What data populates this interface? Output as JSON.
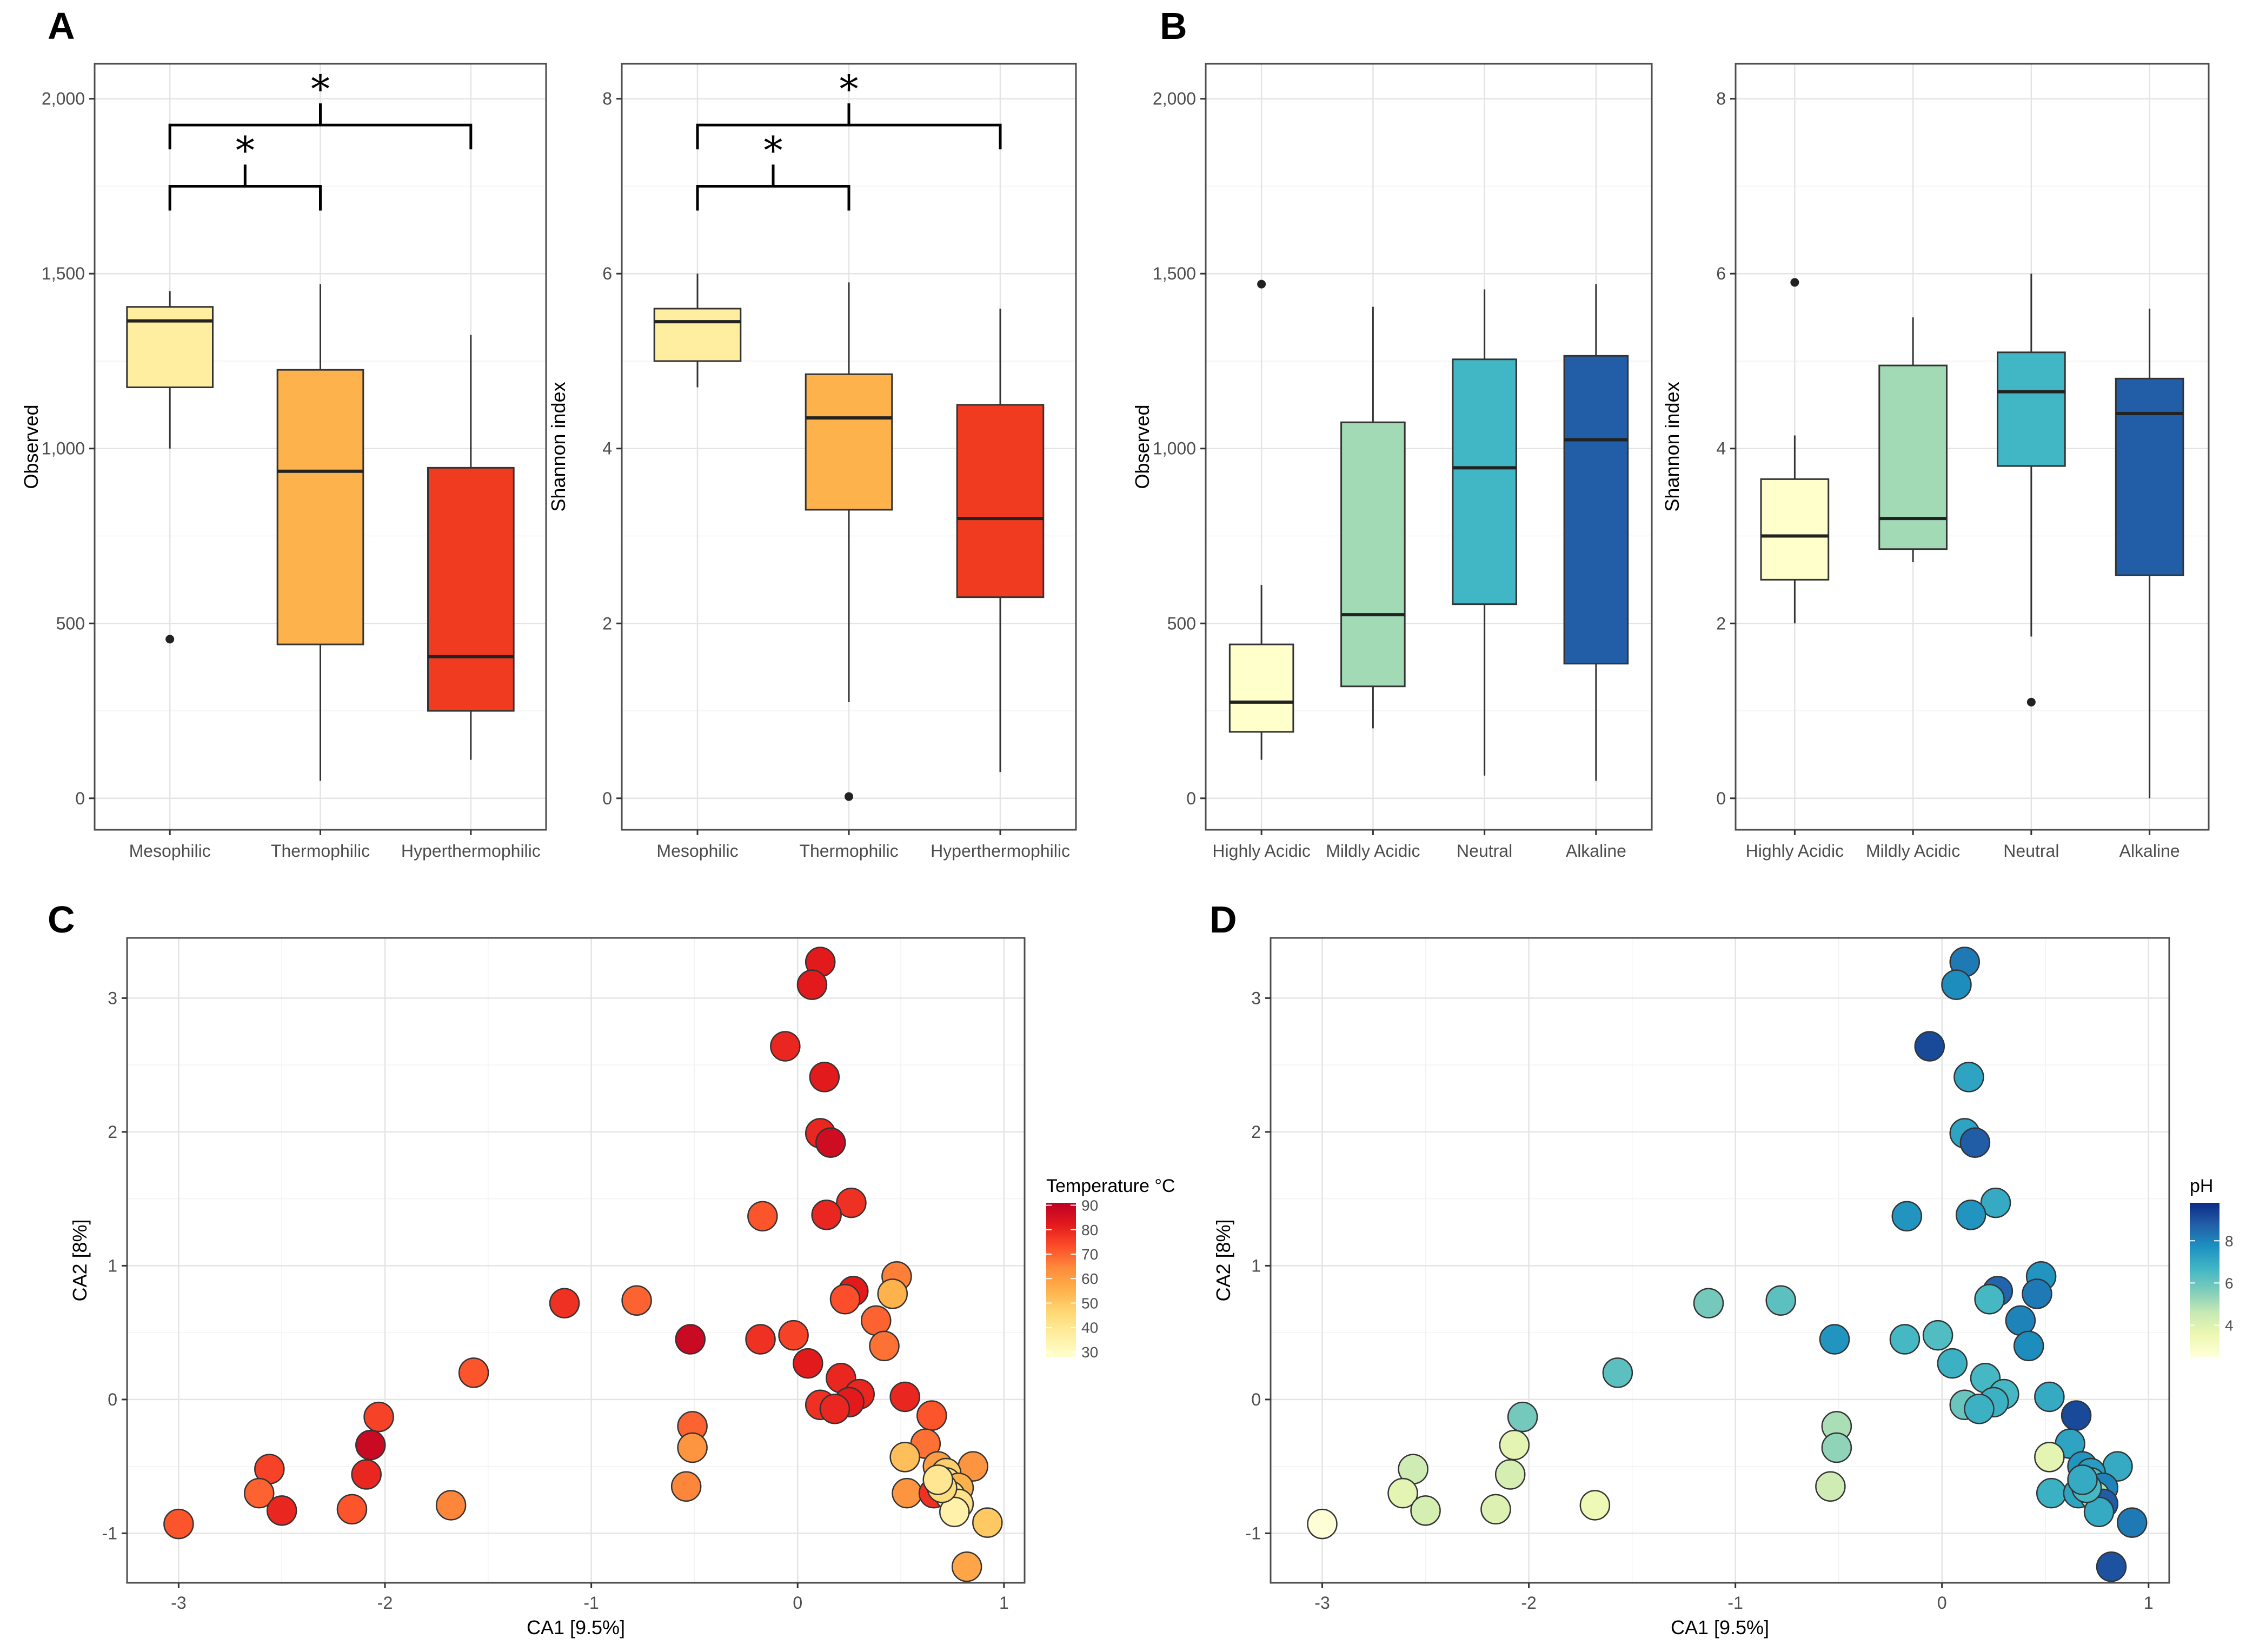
{
  "panel_labels": [
    "A",
    "B",
    "C",
    "D"
  ],
  "chart_data": [
    {
      "type": "box",
      "id": "A1",
      "panel": "A",
      "ylabel": "Observed",
      "ylim": [
        -90,
        2100
      ],
      "yticks": [
        0,
        500,
        1000,
        1500,
        2000
      ],
      "ytick_labels": [
        "0",
        "500",
        "1,000",
        "1,500",
        "2,000"
      ],
      "categories": [
        "Mesophilic",
        "Thermophilic",
        "Hyperthermophilic"
      ],
      "boxes": [
        {
          "color": "#FFEDA0",
          "lower_whisker": 1000,
          "q1": 1175,
          "median": 1365,
          "q3": 1405,
          "upper_whisker": 1450,
          "outliers": [
            455
          ]
        },
        {
          "color": "#FEB24C",
          "lower_whisker": 50,
          "q1": 440,
          "median": 935,
          "q3": 1225,
          "upper_whisker": 1470,
          "outliers": []
        },
        {
          "color": "#F03B20",
          "lower_whisker": 110,
          "q1": 250,
          "median": 405,
          "q3": 945,
          "upper_whisker": 1325,
          "outliers": []
        }
      ],
      "significance": [
        {
          "from": 0,
          "to": 1,
          "label": "*",
          "y": 1750
        },
        {
          "from": 0,
          "to": 2,
          "label": "*",
          "y": 1925
        }
      ]
    },
    {
      "type": "box",
      "id": "A2",
      "panel": "A",
      "ylabel": "Shannon index",
      "ylim": [
        -0.36,
        8.4
      ],
      "yticks": [
        0,
        2,
        4,
        6,
        8
      ],
      "ytick_labels": [
        "0",
        "2",
        "4",
        "6",
        "8"
      ],
      "categories": [
        "Mesophilic",
        "Thermophilic",
        "Hyperthermophilic"
      ],
      "boxes": [
        {
          "color": "#FFEDA0",
          "lower_whisker": 4.7,
          "q1": 5.0,
          "median": 5.45,
          "q3": 5.6,
          "upper_whisker": 6.0,
          "outliers": []
        },
        {
          "color": "#FEB24C",
          "lower_whisker": 1.1,
          "q1": 3.3,
          "median": 4.35,
          "q3": 4.85,
          "upper_whisker": 5.9,
          "outliers": [
            0.02
          ]
        },
        {
          "color": "#F03B20",
          "lower_whisker": 0.3,
          "q1": 2.3,
          "median": 3.2,
          "q3": 4.5,
          "upper_whisker": 5.6,
          "outliers": []
        }
      ],
      "significance": [
        {
          "from": 0,
          "to": 1,
          "label": "*",
          "y": 7.0
        },
        {
          "from": 0,
          "to": 2,
          "label": "*",
          "y": 7.7
        }
      ]
    },
    {
      "type": "box",
      "id": "B1",
      "panel": "B",
      "ylabel": "Observed",
      "ylim": [
        -90,
        2100
      ],
      "yticks": [
        0,
        500,
        1000,
        1500,
        2000
      ],
      "ytick_labels": [
        "0",
        "500",
        "1,000",
        "1,500",
        "2,000"
      ],
      "categories": [
        "Highly Acidic",
        "Mildly Acidic",
        "Neutral",
        "Alkaline"
      ],
      "boxes": [
        {
          "color": "#FFFFCC",
          "lower_whisker": 110,
          "q1": 190,
          "median": 275,
          "q3": 440,
          "upper_whisker": 610,
          "outliers": [
            1470
          ]
        },
        {
          "color": "#A1DAB4",
          "lower_whisker": 200,
          "q1": 320,
          "median": 525,
          "q3": 1075,
          "upper_whisker": 1405,
          "outliers": []
        },
        {
          "color": "#41B6C4",
          "lower_whisker": 65,
          "q1": 555,
          "median": 945,
          "q3": 1255,
          "upper_whisker": 1455,
          "outliers": []
        },
        {
          "color": "#225EA8",
          "lower_whisker": 50,
          "q1": 385,
          "median": 1025,
          "q3": 1265,
          "upper_whisker": 1470,
          "outliers": []
        }
      ],
      "significance": []
    },
    {
      "type": "box",
      "id": "B2",
      "panel": "B",
      "ylabel": "Shannon index",
      "ylim": [
        -0.36,
        8.4
      ],
      "yticks": [
        0,
        2,
        4,
        6,
        8
      ],
      "ytick_labels": [
        "0",
        "2",
        "4",
        "6",
        "8"
      ],
      "categories": [
        "Highly Acidic",
        "Mildly Acidic",
        "Neutral",
        "Alkaline"
      ],
      "boxes": [
        {
          "color": "#FFFFCC",
          "lower_whisker": 2.0,
          "q1": 2.5,
          "median": 3.0,
          "q3": 3.65,
          "upper_whisker": 4.15,
          "outliers": [
            5.9
          ]
        },
        {
          "color": "#A1DAB4",
          "lower_whisker": 2.7,
          "q1": 2.85,
          "median": 3.2,
          "q3": 4.95,
          "upper_whisker": 5.5,
          "outliers": []
        },
        {
          "color": "#41B6C4",
          "lower_whisker": 1.85,
          "q1": 3.8,
          "median": 4.65,
          "q3": 5.1,
          "upper_whisker": 6.0,
          "outliers": [
            1.1
          ]
        },
        {
          "color": "#225EA8",
          "lower_whisker": 0.0,
          "q1": 2.55,
          "median": 4.4,
          "q3": 4.8,
          "upper_whisker": 5.6,
          "outliers": []
        }
      ],
      "significance": []
    },
    {
      "type": "scatter",
      "id": "C",
      "panel": "C",
      "xlabel": "CA1   [9.5%]",
      "ylabel": "CA2   [8%]",
      "xlim": [
        -3.25,
        1.1
      ],
      "ylim": [
        -1.37,
        3.45
      ],
      "xticks": [
        -3,
        -2,
        -1,
        0,
        1
      ],
      "yticks": [
        -1,
        0,
        1,
        2,
        3
      ],
      "xtick_labels": [
        "-3",
        "-2",
        "-1",
        "0",
        "1"
      ],
      "ytick_labels": [
        "-1",
        "0",
        "1",
        "2",
        "3"
      ],
      "color_scale": [
        "#FFFFCC",
        "#FFEDA0",
        "#FED976",
        "#FEB24C",
        "#FD8D3C",
        "#FC4E2A",
        "#E31A1C",
        "#BD0026"
      ],
      "color_range": [
        28,
        91
      ],
      "legend": {
        "title": "Temperature °C",
        "ticks": [
          30,
          40,
          50,
          60,
          70,
          80,
          90
        ],
        "tick_labels": [
          "30",
          "40",
          "50",
          "60",
          "70",
          "80",
          "90"
        ]
      },
      "points": [
        {
          "x": 0.11,
          "y": 3.27,
          "c": 82
        },
        {
          "x": 0.07,
          "y": 3.1,
          "c": 82
        },
        {
          "x": -0.06,
          "y": 2.64,
          "c": 80
        },
        {
          "x": 0.13,
          "y": 2.41,
          "c": 82
        },
        {
          "x": 0.11,
          "y": 1.99,
          "c": 80
        },
        {
          "x": 0.16,
          "y": 1.92,
          "c": 87
        },
        {
          "x": 0.26,
          "y": 1.47,
          "c": 78
        },
        {
          "x": 0.14,
          "y": 1.38,
          "c": 80
        },
        {
          "x": -0.17,
          "y": 1.37,
          "c": 72
        },
        {
          "x": 0.27,
          "y": 0.81,
          "c": 82
        },
        {
          "x": 0.23,
          "y": 0.75,
          "c": 73
        },
        {
          "x": 0.48,
          "y": 0.92,
          "c": 66
        },
        {
          "x": 0.46,
          "y": 0.79,
          "c": 55
        },
        {
          "x": -1.13,
          "y": 0.72,
          "c": 78
        },
        {
          "x": -0.78,
          "y": 0.74,
          "c": 70
        },
        {
          "x": -0.52,
          "y": 0.45,
          "c": 88
        },
        {
          "x": -0.18,
          "y": 0.45,
          "c": 78
        },
        {
          "x": -0.02,
          "y": 0.48,
          "c": 75
        },
        {
          "x": 0.38,
          "y": 0.59,
          "c": 70
        },
        {
          "x": 0.42,
          "y": 0.4,
          "c": 68
        },
        {
          "x": 0.05,
          "y": 0.27,
          "c": 82
        },
        {
          "x": 0.21,
          "y": 0.16,
          "c": 80
        },
        {
          "x": -1.57,
          "y": 0.2,
          "c": 72
        },
        {
          "x": 0.3,
          "y": 0.04,
          "c": 80
        },
        {
          "x": 0.25,
          "y": -0.02,
          "c": 82
        },
        {
          "x": 0.11,
          "y": -0.04,
          "c": 78
        },
        {
          "x": 0.18,
          "y": -0.07,
          "c": 80
        },
        {
          "x": 0.52,
          "y": 0.02,
          "c": 80
        },
        {
          "x": 0.65,
          "y": -0.12,
          "c": 72
        },
        {
          "x": 0.62,
          "y": -0.33,
          "c": 68
        },
        {
          "x": -0.51,
          "y": -0.2,
          "c": 70
        },
        {
          "x": -0.51,
          "y": -0.36,
          "c": 62
        },
        {
          "x": -0.54,
          "y": -0.65,
          "c": 65
        },
        {
          "x": 0.52,
          "y": -0.43,
          "c": 52
        },
        {
          "x": 0.68,
          "y": -0.5,
          "c": 60
        },
        {
          "x": 0.85,
          "y": -0.5,
          "c": 62
        },
        {
          "x": 0.72,
          "y": -0.55,
          "c": 48
        },
        {
          "x": 0.72,
          "y": -0.62,
          "c": 42
        },
        {
          "x": 0.78,
          "y": -0.66,
          "c": 55
        },
        {
          "x": 0.53,
          "y": -0.7,
          "c": 62
        },
        {
          "x": 0.66,
          "y": -0.7,
          "c": 78
        },
        {
          "x": 0.74,
          "y": -0.72,
          "c": 38
        },
        {
          "x": 0.78,
          "y": -0.78,
          "c": 42
        },
        {
          "x": 0.76,
          "y": -0.84,
          "c": 35
        },
        {
          "x": 0.92,
          "y": -0.92,
          "c": 50
        },
        {
          "x": 0.82,
          "y": -1.25,
          "c": 58
        },
        {
          "x": 0.7,
          "y": -0.66,
          "c": 45
        },
        {
          "x": 0.68,
          "y": -0.6,
          "c": 40
        },
        {
          "x": -2.03,
          "y": -0.13,
          "c": 75
        },
        {
          "x": -2.07,
          "y": -0.34,
          "c": 88
        },
        {
          "x": -2.09,
          "y": -0.56,
          "c": 80
        },
        {
          "x": -2.56,
          "y": -0.52,
          "c": 75
        },
        {
          "x": -2.61,
          "y": -0.7,
          "c": 70
        },
        {
          "x": -2.5,
          "y": -0.83,
          "c": 80
        },
        {
          "x": -2.16,
          "y": -0.82,
          "c": 72
        },
        {
          "x": -1.68,
          "y": -0.79,
          "c": 65
        },
        {
          "x": -3.0,
          "y": -0.93,
          "c": 72
        }
      ]
    },
    {
      "type": "scatter",
      "id": "D",
      "panel": "D",
      "xlabel": "CA1   [9.5%]",
      "ylabel": "CA2   [8%]",
      "xlim": [
        -3.25,
        1.1
      ],
      "ylim": [
        -1.37,
        3.45
      ],
      "xticks": [
        -3,
        -2,
        -1,
        0,
        1
      ],
      "yticks": [
        -1,
        0,
        1,
        2,
        3
      ],
      "xtick_labels": [
        "-3",
        "-2",
        "-1",
        "0",
        "1"
      ],
      "ytick_labels": [
        "-1",
        "0",
        "1",
        "2",
        "3"
      ],
      "color_scale": [
        "#FFFFD9",
        "#EDF8B1",
        "#C7E9B4",
        "#7FCDBB",
        "#41B6C4",
        "#1D91C0",
        "#225EA8",
        "#0C2C84"
      ],
      "color_range": [
        2.5,
        9.8
      ],
      "legend": {
        "title": "pH",
        "ticks": [
          4,
          6,
          8
        ],
        "tick_labels": [
          "4",
          "6",
          "8"
        ]
      },
      "points": [
        {
          "x": 0.11,
          "y": 3.27,
          "c": 8.2
        },
        {
          "x": 0.07,
          "y": 3.1,
          "c": 7.8
        },
        {
          "x": -0.06,
          "y": 2.64,
          "c": 9.2
        },
        {
          "x": 0.13,
          "y": 2.41,
          "c": 7.2
        },
        {
          "x": 0.11,
          "y": 1.99,
          "c": 7.2
        },
        {
          "x": 0.16,
          "y": 1.92,
          "c": 8.8
        },
        {
          "x": 0.26,
          "y": 1.47,
          "c": 7.0
        },
        {
          "x": 0.14,
          "y": 1.38,
          "c": 7.6
        },
        {
          "x": -0.17,
          "y": 1.37,
          "c": 7.6
        },
        {
          "x": 0.27,
          "y": 0.81,
          "c": 8.6
        },
        {
          "x": 0.23,
          "y": 0.75,
          "c": 6.6
        },
        {
          "x": 0.48,
          "y": 0.92,
          "c": 7.6
        },
        {
          "x": 0.46,
          "y": 0.79,
          "c": 8.2
        },
        {
          "x": -1.13,
          "y": 0.72,
          "c": 5.8
        },
        {
          "x": -0.78,
          "y": 0.74,
          "c": 6.2
        },
        {
          "x": -0.52,
          "y": 0.45,
          "c": 7.6
        },
        {
          "x": -0.18,
          "y": 0.45,
          "c": 6.6
        },
        {
          "x": -0.02,
          "y": 0.48,
          "c": 6.4
        },
        {
          "x": 0.38,
          "y": 0.59,
          "c": 8.0
        },
        {
          "x": 0.42,
          "y": 0.4,
          "c": 7.8
        },
        {
          "x": 0.05,
          "y": 0.27,
          "c": 6.8
        },
        {
          "x": 0.21,
          "y": 0.16,
          "c": 6.6
        },
        {
          "x": -1.57,
          "y": 0.2,
          "c": 6.2
        },
        {
          "x": 0.3,
          "y": 0.04,
          "c": 6.6
        },
        {
          "x": 0.25,
          "y": -0.02,
          "c": 6.8
        },
        {
          "x": 0.11,
          "y": -0.04,
          "c": 6.0
        },
        {
          "x": 0.18,
          "y": -0.07,
          "c": 6.8
        },
        {
          "x": 0.52,
          "y": 0.02,
          "c": 7.0
        },
        {
          "x": 0.65,
          "y": -0.12,
          "c": 9.2
        },
        {
          "x": 0.62,
          "y": -0.33,
          "c": 7.2
        },
        {
          "x": -0.51,
          "y": -0.2,
          "c": 5.0
        },
        {
          "x": -0.51,
          "y": -0.36,
          "c": 5.4
        },
        {
          "x": -0.54,
          "y": -0.65,
          "c": 4.4
        },
        {
          "x": 0.52,
          "y": -0.43,
          "c": 3.8
        },
        {
          "x": 0.68,
          "y": -0.5,
          "c": 7.6
        },
        {
          "x": 0.85,
          "y": -0.5,
          "c": 7.0
        },
        {
          "x": 0.72,
          "y": -0.55,
          "c": 7.4
        },
        {
          "x": 0.72,
          "y": -0.62,
          "c": 6.4
        },
        {
          "x": 0.78,
          "y": -0.66,
          "c": 8.0
        },
        {
          "x": 0.53,
          "y": -0.7,
          "c": 6.8
        },
        {
          "x": 0.66,
          "y": -0.7,
          "c": 7.2
        },
        {
          "x": 0.74,
          "y": -0.72,
          "c": 5.0
        },
        {
          "x": 0.78,
          "y": -0.78,
          "c": 8.8
        },
        {
          "x": 0.76,
          "y": -0.84,
          "c": 7.0
        },
        {
          "x": 0.92,
          "y": -0.92,
          "c": 8.2
        },
        {
          "x": 0.82,
          "y": -1.25,
          "c": 9.0
        },
        {
          "x": 0.7,
          "y": -0.66,
          "c": 6.6
        },
        {
          "x": 0.68,
          "y": -0.6,
          "c": 7.0
        },
        {
          "x": -2.03,
          "y": -0.13,
          "c": 5.8
        },
        {
          "x": -2.07,
          "y": -0.34,
          "c": 3.8
        },
        {
          "x": -2.09,
          "y": -0.56,
          "c": 4.2
        },
        {
          "x": -2.56,
          "y": -0.52,
          "c": 4.4
        },
        {
          "x": -2.61,
          "y": -0.7,
          "c": 3.8
        },
        {
          "x": -2.5,
          "y": -0.83,
          "c": 4.2
        },
        {
          "x": -2.16,
          "y": -0.82,
          "c": 4.0
        },
        {
          "x": -1.68,
          "y": -0.79,
          "c": 3.4
        },
        {
          "x": -3.0,
          "y": -0.93,
          "c": 2.6
        }
      ]
    }
  ]
}
